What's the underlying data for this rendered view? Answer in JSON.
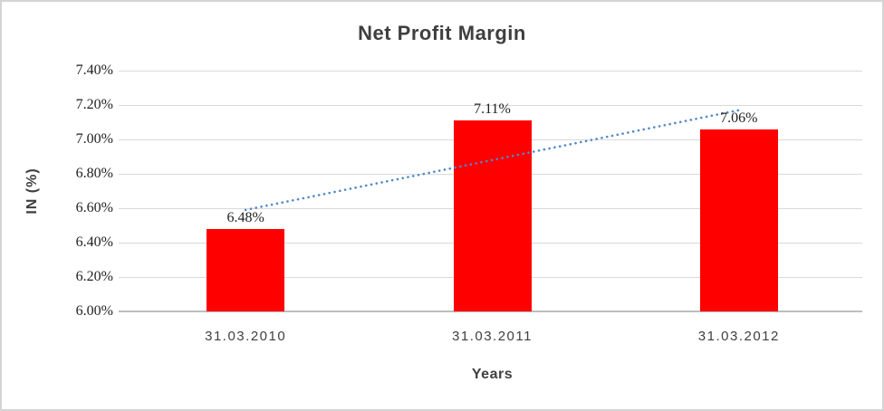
{
  "chart_data": {
    "type": "bar",
    "title": "Net Profit Margin",
    "xlabel": "Years",
    "ylabel": "IN (%)",
    "categories": [
      "31.03.2010",
      "31.03.2011",
      "31.03.2012"
    ],
    "values": [
      6.48,
      7.11,
      7.06
    ],
    "data_labels": [
      "6.48%",
      "7.11%",
      "7.06%"
    ],
    "yticks": [
      "7.40%",
      "7.20%",
      "7.00%",
      "6.80%",
      "6.60%",
      "6.40%",
      "6.20%",
      "6.00%"
    ],
    "ytick_values": [
      7.4,
      7.2,
      7.0,
      6.8,
      6.6,
      6.4,
      6.2,
      6.0
    ],
    "ylim": [
      6.0,
      7.4
    ],
    "grid": true,
    "legend": false,
    "bar_color": "#ff0000",
    "grid_color": "#d9d9d9",
    "axis_color": "#bdbdbd",
    "trendline": {
      "type": "linear",
      "style": "dotted",
      "color": "#4f88c9",
      "start_value": 6.59,
      "end_value": 7.17
    }
  }
}
